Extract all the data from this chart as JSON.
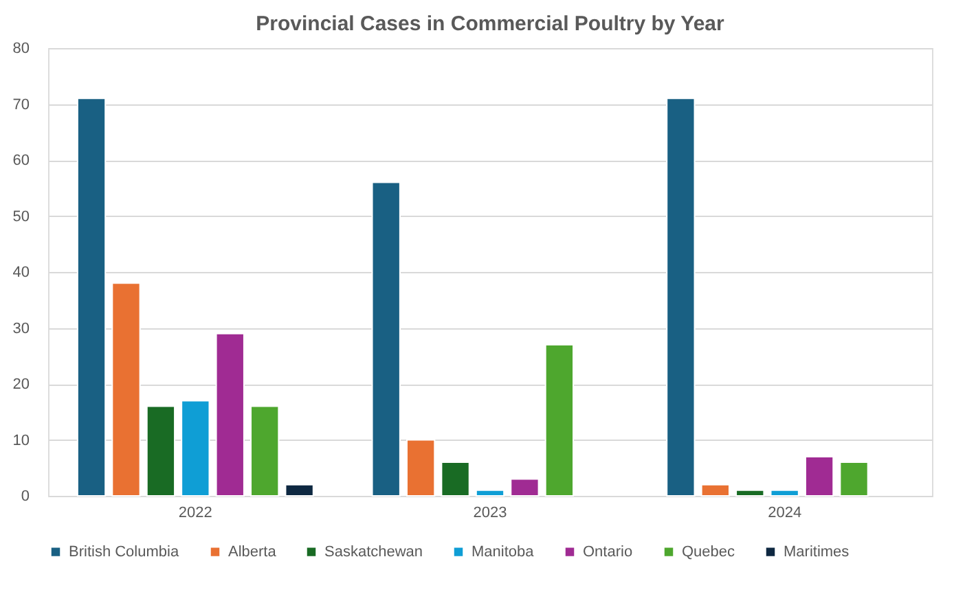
{
  "chart_data": {
    "type": "bar",
    "title": "Provincial Cases in Commercial Poultry by Year",
    "categories": [
      "2022",
      "2023",
      "2024"
    ],
    "series": [
      {
        "name": "British Columbia",
        "color": "#196083",
        "values": [
          71,
          56,
          71
        ]
      },
      {
        "name": "Alberta",
        "color": "#e97132",
        "values": [
          38,
          10,
          2
        ]
      },
      {
        "name": "Saskatchewan",
        "color": "#196b24",
        "values": [
          16,
          6,
          1
        ]
      },
      {
        "name": "Manitoba",
        "color": "#0f9ed5",
        "values": [
          17,
          1,
          1
        ]
      },
      {
        "name": "Ontario",
        "color": "#a02b93",
        "values": [
          29,
          3,
          7
        ]
      },
      {
        "name": "Quebec",
        "color": "#4ea72e",
        "values": [
          16,
          27,
          6
        ]
      },
      {
        "name": "Maritimes",
        "color": "#0e2841",
        "values": [
          2,
          null,
          null
        ]
      }
    ],
    "ylim": [
      0,
      80
    ],
    "yticks": [
      0,
      10,
      20,
      30,
      40,
      50,
      60,
      70,
      80
    ],
    "grid": "y",
    "legend": "bottom"
  }
}
